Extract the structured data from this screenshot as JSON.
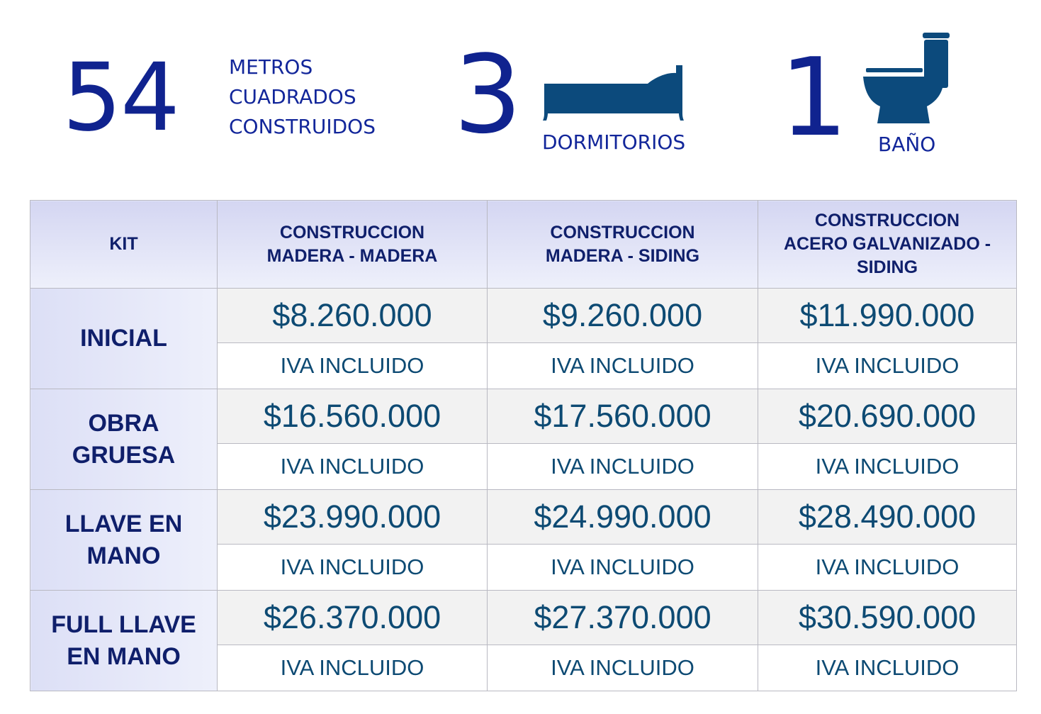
{
  "stats": {
    "area": {
      "value": "54",
      "label_lines": [
        "METROS",
        "CUADRADOS",
        "CONSTRUIDOS"
      ]
    },
    "bedrooms": {
      "value": "3",
      "label": "DORMITORIOS",
      "icon": "bed-icon"
    },
    "bathrooms": {
      "value": "1",
      "label": "BAÑO",
      "icon": "toilet-icon"
    }
  },
  "table": {
    "headers": [
      {
        "lines": [
          "KIT"
        ]
      },
      {
        "lines": [
          "CONSTRUCCION",
          "MADERA - MADERA"
        ]
      },
      {
        "lines": [
          "CONSTRUCCION",
          "MADERA - SIDING"
        ]
      },
      {
        "lines": [
          "CONSTRUCCION",
          "ACERO GALVANIZADO -",
          "SIDING"
        ]
      }
    ],
    "rows": [
      {
        "kit_lines": [
          "INICIAL"
        ],
        "prices": [
          "$8.260.000",
          "$9.260.000",
          "$11.990.000"
        ],
        "notes": [
          "IVA INCLUIDO",
          "IVA INCLUIDO",
          "IVA INCLUIDO"
        ]
      },
      {
        "kit_lines": [
          "OBRA",
          "GRUESA"
        ],
        "prices": [
          "$16.560.000",
          "$17.560.000",
          "$20.690.000"
        ],
        "notes": [
          "IVA INCLUIDO",
          "IVA INCLUIDO",
          "IVA INCLUIDO"
        ]
      },
      {
        "kit_lines": [
          "LLAVE EN",
          "MANO"
        ],
        "prices": [
          "$23.990.000",
          "$24.990.000",
          "$28.490.000"
        ],
        "notes": [
          "IVA INCLUIDO",
          "IVA INCLUIDO",
          "IVA INCLUIDO"
        ]
      },
      {
        "kit_lines": [
          "FULL LLAVE",
          "EN MANO"
        ],
        "prices": [
          "$26.370.000",
          "$27.370.000",
          "$30.590.000"
        ],
        "notes": [
          "IVA INCLUIDO",
          "IVA INCLUIDO",
          "IVA INCLUIDO"
        ]
      }
    ]
  },
  "colors": {
    "hero_blue": "#10238f",
    "icon_blue": "#0c4a7c",
    "price_blue": "#0d4a73",
    "header_navy": "#0f1f6b"
  }
}
